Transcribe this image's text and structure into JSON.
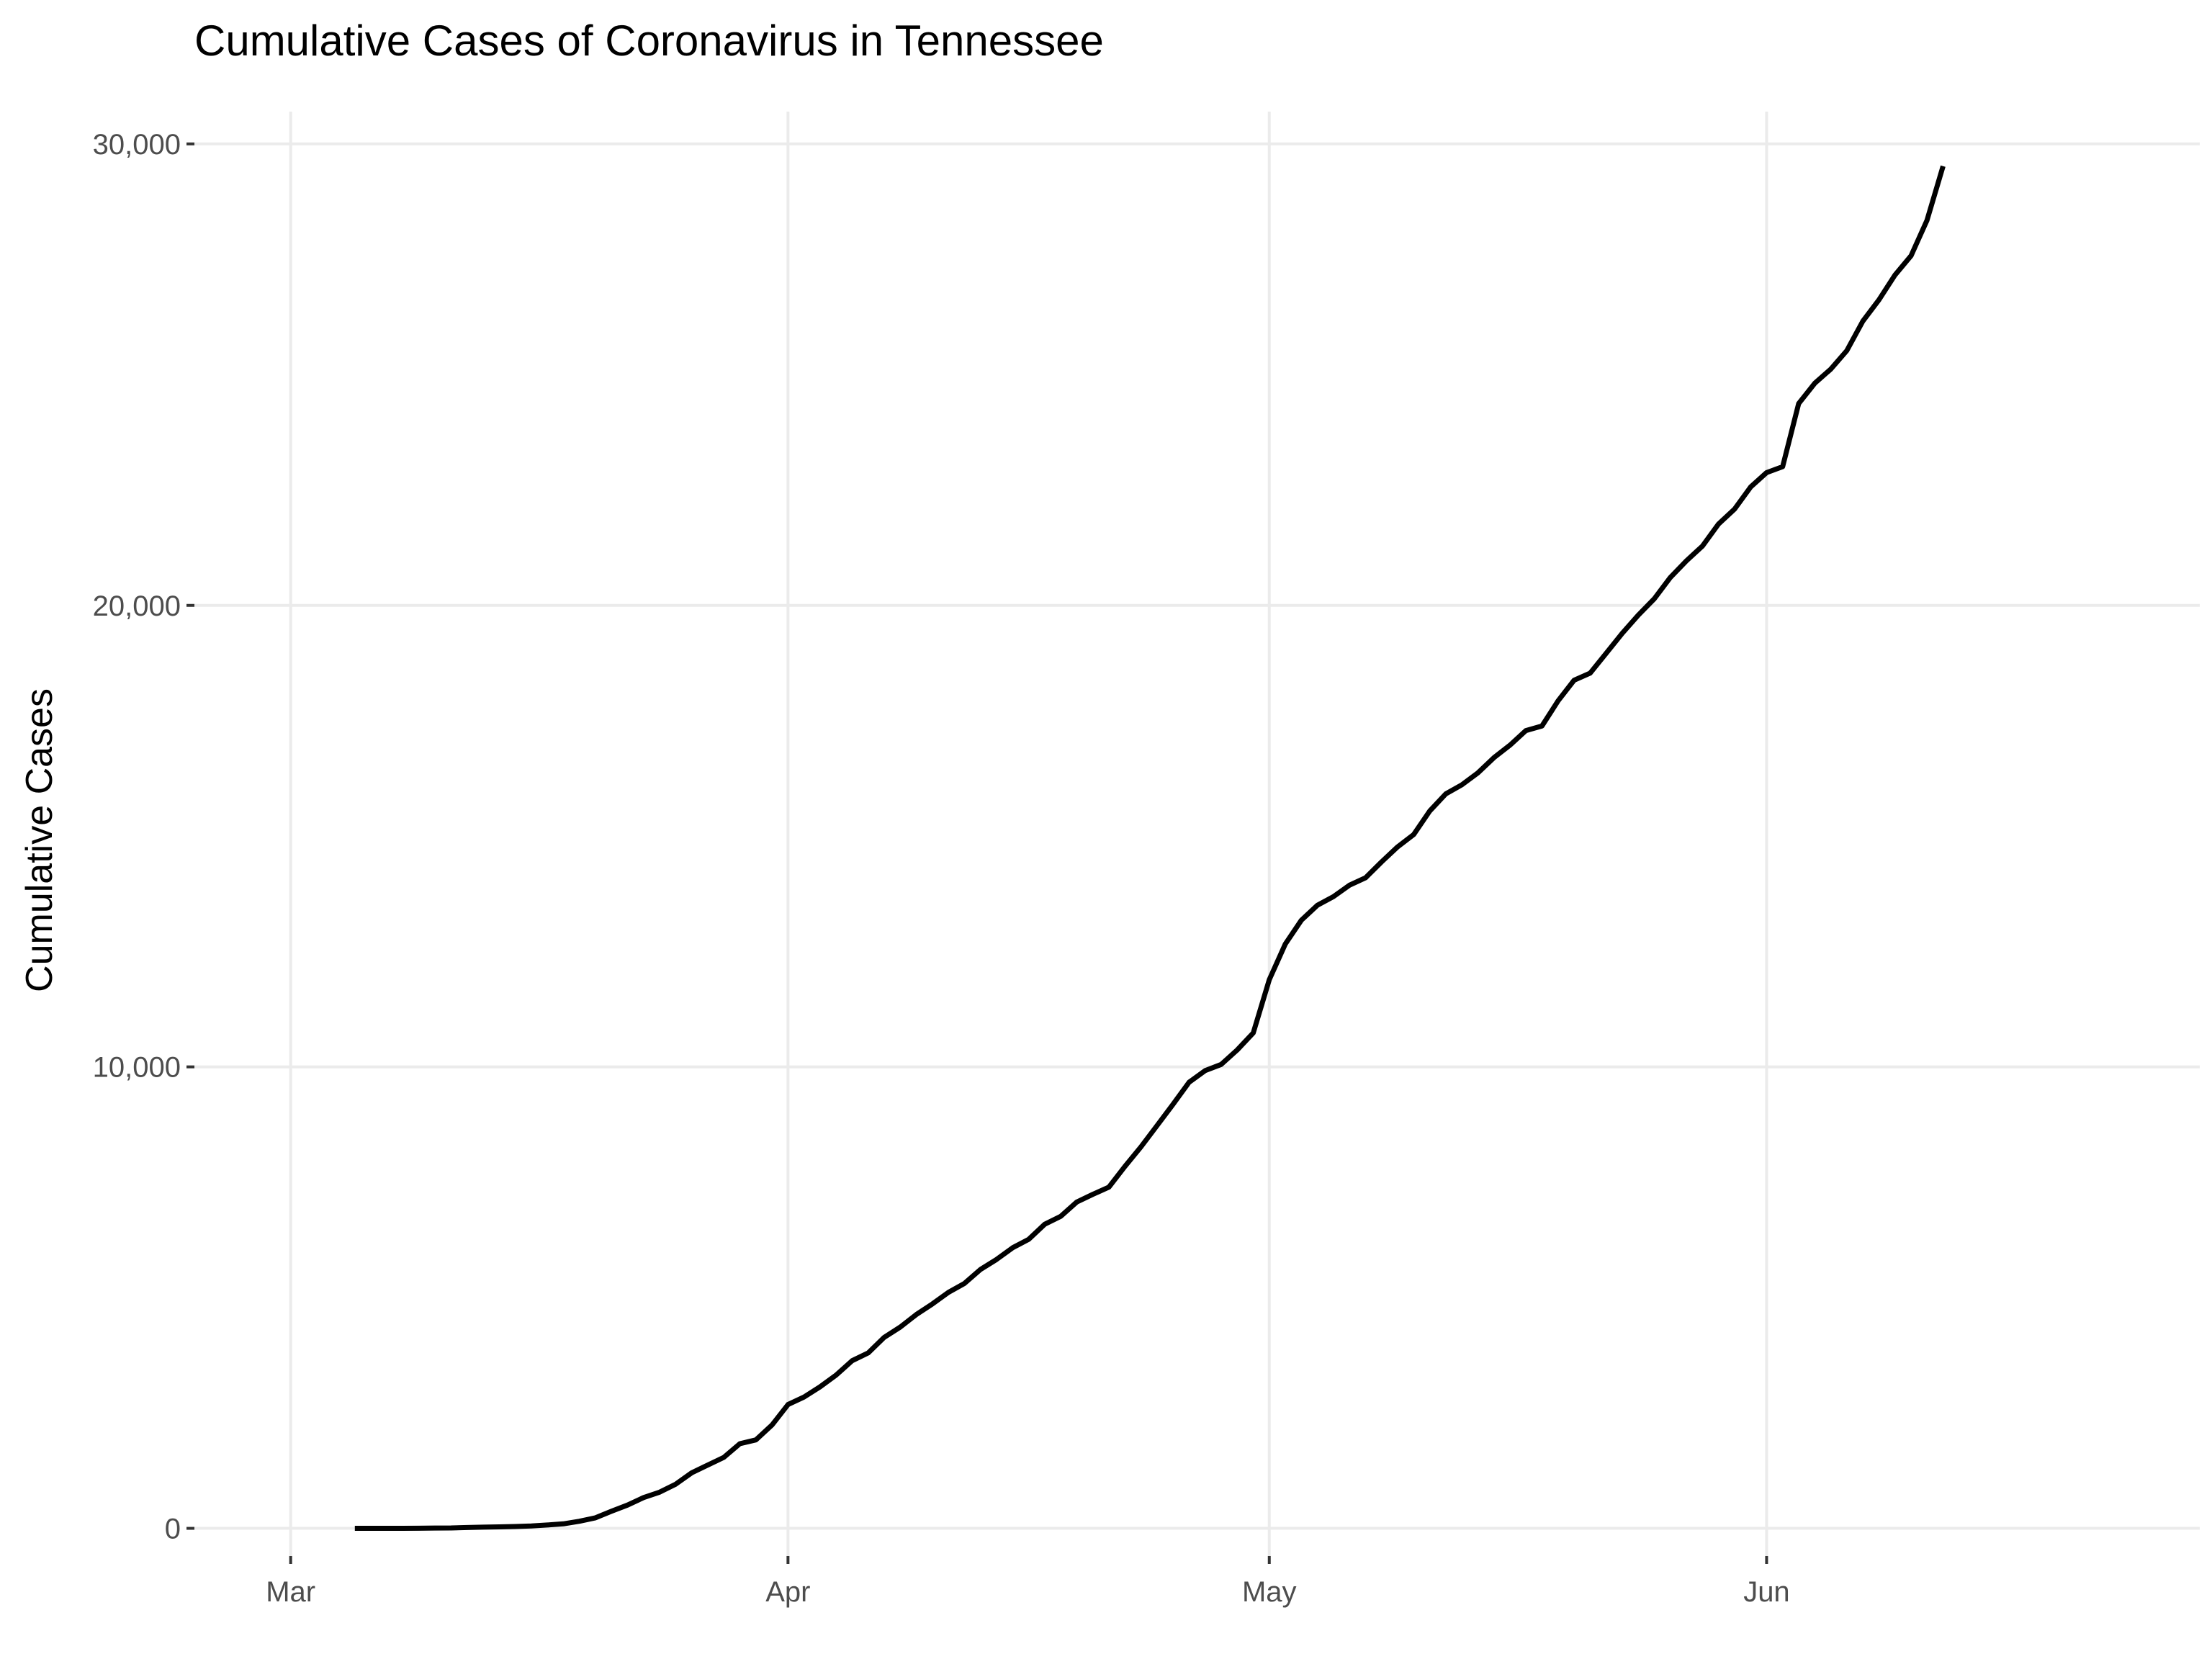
{
  "chart_data": {
    "type": "line",
    "title": "Cumulative Cases of Coronavirus in Tennessee",
    "xlabel": "",
    "ylabel": "Cumulative Cases",
    "grid": true,
    "legend": "none",
    "line_color": "#000000",
    "grid_color": "#ebebeb",
    "x_ticks": [
      {
        "label": "Mar",
        "date": "2020-03-01"
      },
      {
        "label": "Apr",
        "date": "2020-04-01"
      },
      {
        "label": "May",
        "date": "2020-05-01"
      },
      {
        "label": "Jun",
        "date": "2020-06-01"
      }
    ],
    "y_ticks": [
      {
        "label": "0",
        "value": 0
      },
      {
        "label": "10,000",
        "value": 10000
      },
      {
        "label": "20,000",
        "value": 20000
      },
      {
        "label": "30,000",
        "value": 30000
      }
    ],
    "xlim": [
      "2020-02-24",
      "2020-06-28"
    ],
    "ylim": [
      -600,
      30700
    ],
    "series": [
      {
        "name": "",
        "x": [
          "2020-03-05",
          "2020-03-06",
          "2020-03-07",
          "2020-03-08",
          "2020-03-09",
          "2020-03-10",
          "2020-03-11",
          "2020-03-12",
          "2020-03-13",
          "2020-03-14",
          "2020-03-15",
          "2020-03-16",
          "2020-03-17",
          "2020-03-18",
          "2020-03-19",
          "2020-03-20",
          "2020-03-21",
          "2020-03-22",
          "2020-03-23",
          "2020-03-24",
          "2020-03-25",
          "2020-03-26",
          "2020-03-27",
          "2020-03-28",
          "2020-03-29",
          "2020-03-30",
          "2020-03-31",
          "2020-04-01",
          "2020-04-02",
          "2020-04-03",
          "2020-04-04",
          "2020-04-05",
          "2020-04-06",
          "2020-04-07",
          "2020-04-08",
          "2020-04-09",
          "2020-04-10",
          "2020-04-11",
          "2020-04-12",
          "2020-04-13",
          "2020-04-14",
          "2020-04-15",
          "2020-04-16",
          "2020-04-17",
          "2020-04-18",
          "2020-04-19",
          "2020-04-20",
          "2020-04-21",
          "2020-04-22",
          "2020-04-23",
          "2020-04-24",
          "2020-04-25",
          "2020-04-26",
          "2020-04-27",
          "2020-04-28",
          "2020-04-29",
          "2020-04-30",
          "2020-05-01",
          "2020-05-02",
          "2020-05-03",
          "2020-05-04",
          "2020-05-05",
          "2020-05-06",
          "2020-05-07",
          "2020-05-08",
          "2020-05-09",
          "2020-05-10",
          "2020-05-11",
          "2020-05-12",
          "2020-05-13",
          "2020-05-14",
          "2020-05-15",
          "2020-05-16",
          "2020-05-17",
          "2020-05-18",
          "2020-05-19",
          "2020-05-20",
          "2020-05-21",
          "2020-05-22",
          "2020-05-23",
          "2020-05-24",
          "2020-05-25",
          "2020-05-26",
          "2020-05-27",
          "2020-05-28",
          "2020-05-29",
          "2020-05-30",
          "2020-05-31",
          "2020-06-01",
          "2020-06-02",
          "2020-06-03",
          "2020-06-04",
          "2020-06-05",
          "2020-06-06",
          "2020-06-07",
          "2020-06-08",
          "2020-06-09",
          "2020-06-10",
          "2020-06-11",
          "2020-06-12"
        ],
        "y": [
          1,
          1,
          1,
          1,
          3,
          7,
          9,
          18,
          26,
          32,
          39,
          52,
          73,
          98,
          154,
          228,
          371,
          505,
          667,
          784,
          957,
          1203,
          1373,
          1537,
          1834,
          1917,
          2239,
          2683,
          2845,
          3067,
          3321,
          3633,
          3802,
          4138,
          4362,
          4634,
          4862,
          5114,
          5308,
          5610,
          5827,
          6079,
          6262,
          6589,
          6762,
          7070,
          7238,
          7394,
          7842,
          8266,
          8726,
          9189,
          9667,
          9918,
          10052,
          10366,
          10735,
          11891,
          12661,
          13177,
          13502,
          13690,
          13938,
          14096,
          14441,
          14768,
          15035,
          15544,
          15914,
          16111,
          16370,
          16699,
          16970,
          17288,
          17388,
          17931,
          18378,
          18532,
          18961,
          19394,
          19789,
          20145,
          20607,
          20965,
          21285,
          21763,
          22085,
          22565,
          22876,
          23006,
          24375,
          24813,
          25120,
          25520,
          26159,
          26619,
          27158,
          27575,
          28345,
          29518
        ]
      }
    ]
  }
}
